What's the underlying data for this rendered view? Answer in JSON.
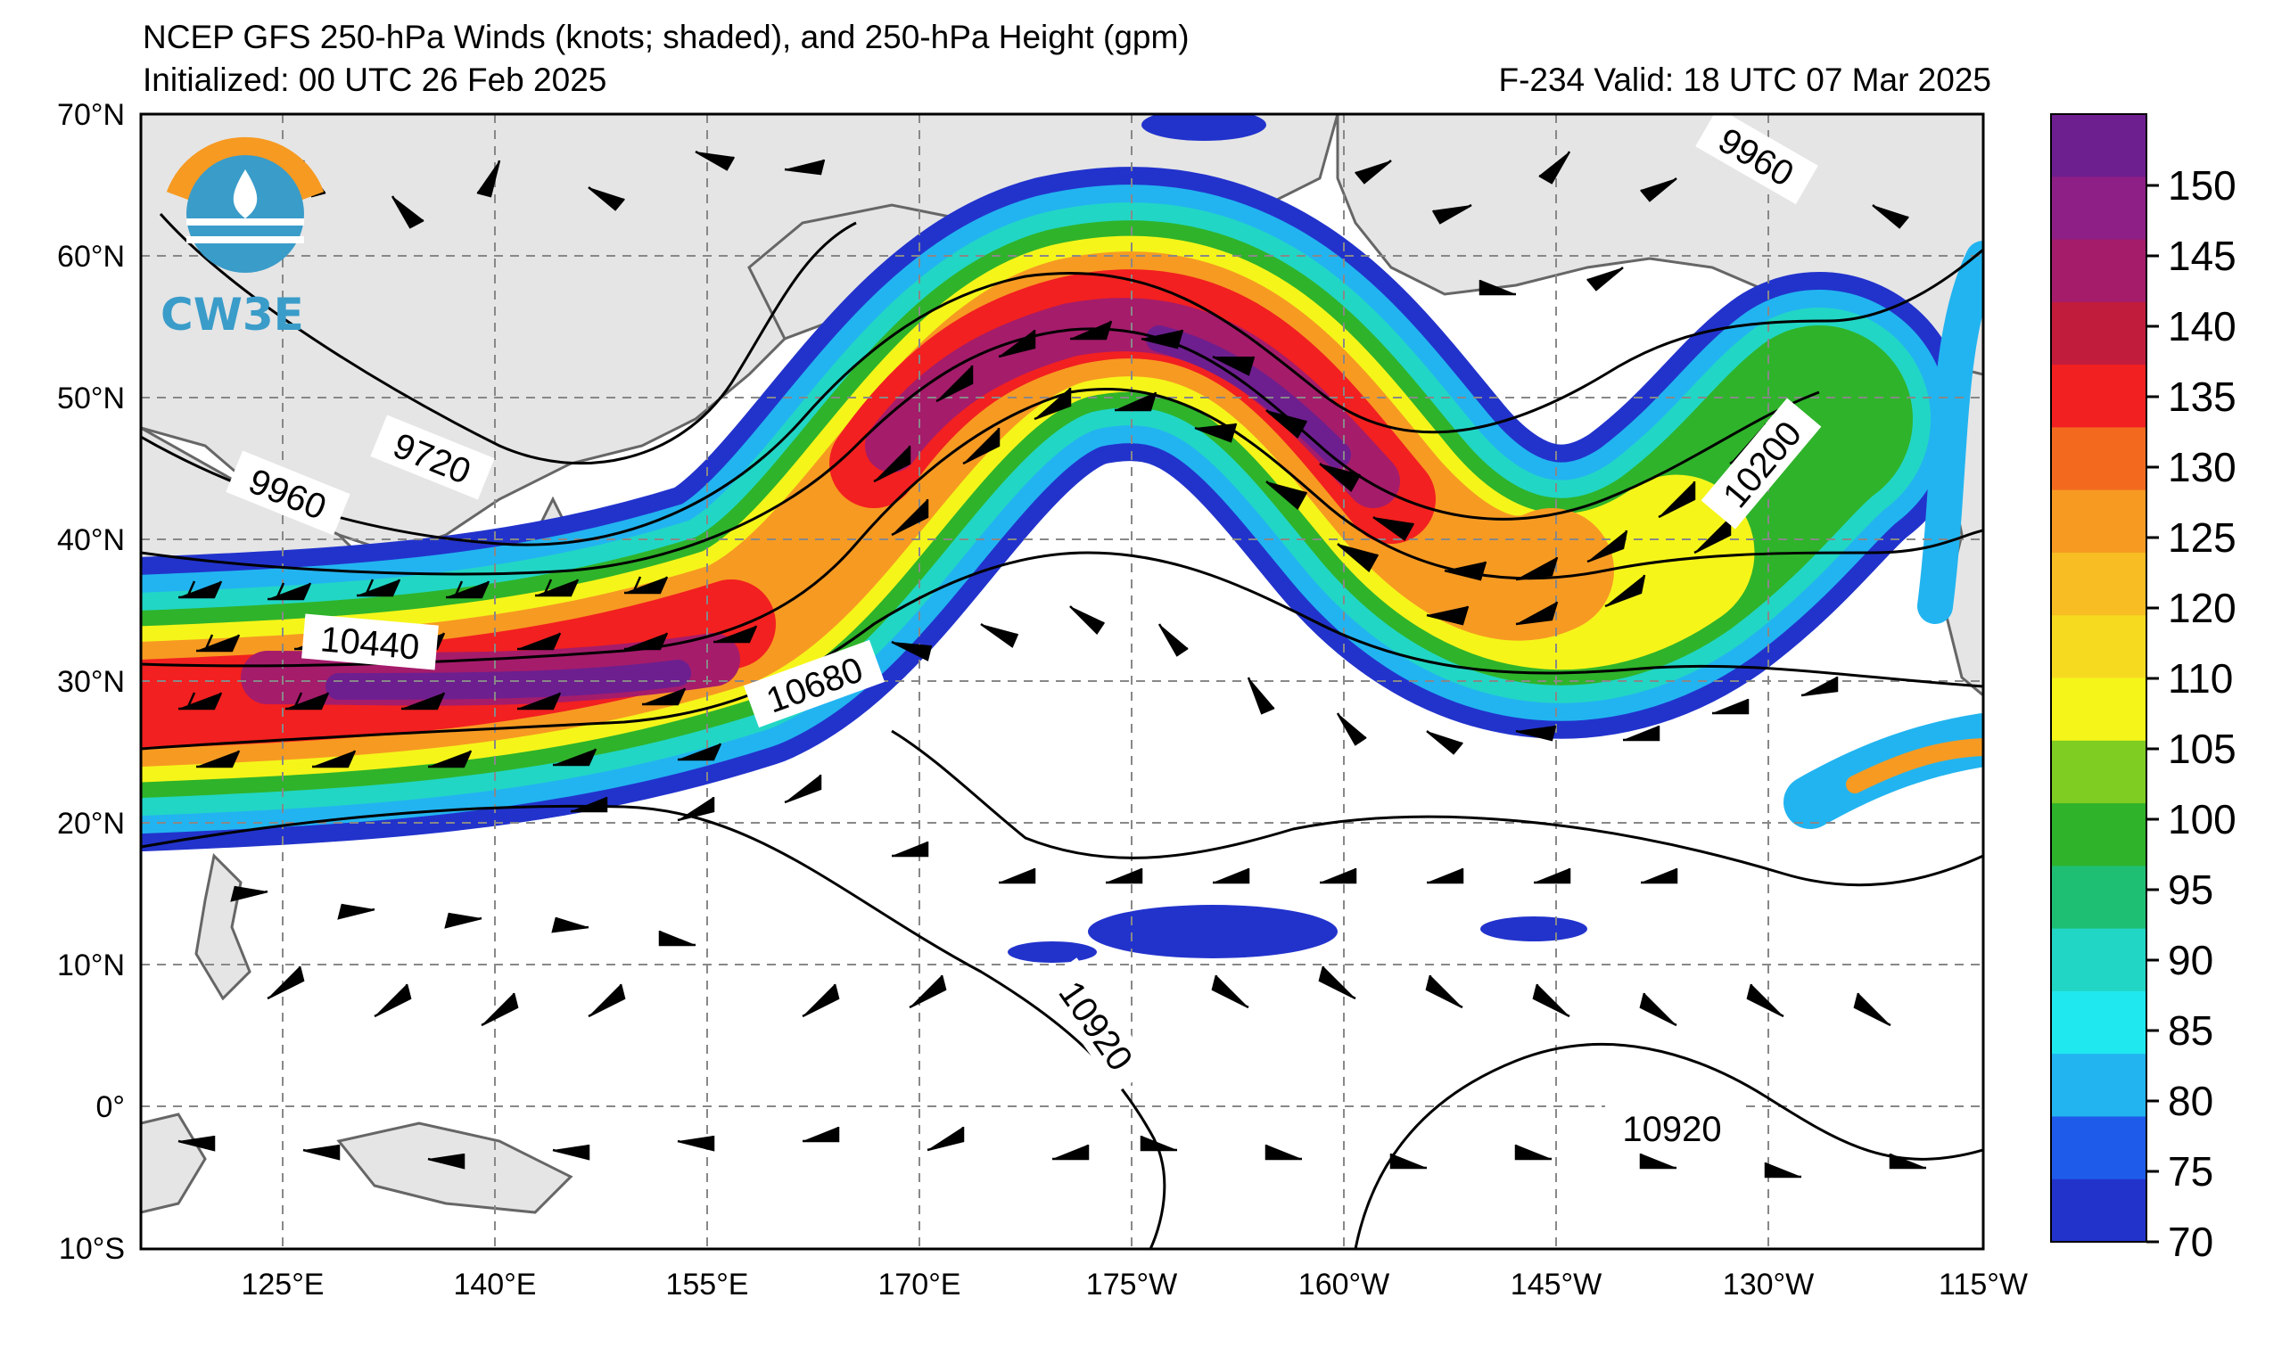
{
  "title": "NCEP GFS 250-hPa Winds (knots; shaded), and 250-hPa Height (gpm)",
  "initialized": "Initialized: 00 UTC 26 Feb 2025",
  "valid": "F-234  Valid: 18 UTC 07 Mar 2025",
  "logo": {
    "text": "CW3E"
  },
  "lat_labels": [
    "70°N",
    "60°N",
    "50°N",
    "40°N",
    "30°N",
    "20°N",
    "10°N",
    "0°",
    "10°S"
  ],
  "lon_labels": [
    "125°E",
    "140°E",
    "155°E",
    "170°E",
    "175°W",
    "160°W",
    "145°W",
    "130°W",
    "115°W"
  ],
  "colorbar": {
    "ticks": [
      "150",
      "145",
      "140",
      "135",
      "130",
      "125",
      "120",
      "110",
      "105",
      "100",
      "95",
      "90",
      "85",
      "80",
      "75",
      "70"
    ],
    "colors": [
      "#6d1f8f",
      "#8e1f86",
      "#a51c6b",
      "#c21c3c",
      "#f22020",
      "#f36a1f",
      "#f79a22",
      "#f7bd22",
      "#f6da20",
      "#f5f51a",
      "#7fcc22",
      "#2fb32a",
      "#1fbf73",
      "#22d6c5",
      "#1fe8ef",
      "#22b4f0",
      "#1e5bea",
      "#2233cc"
    ]
  },
  "contour_labels": [
    "9960",
    "9720",
    "9960",
    "10440",
    "10680",
    "10200",
    "10920",
    "10920"
  ],
  "legend": {
    "unit": "knots"
  }
}
